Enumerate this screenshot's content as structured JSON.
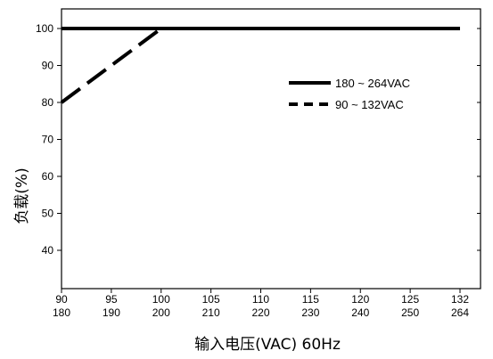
{
  "chart_data": {
    "type": "line",
    "title": "",
    "xlabel": "输入电压(VAC) 60Hz",
    "ylabel": "负载(%)",
    "x_ticks": [
      {
        "top": "90",
        "bottom": "180"
      },
      {
        "top": "95",
        "bottom": "190"
      },
      {
        "top": "100",
        "bottom": "200"
      },
      {
        "top": "105",
        "bottom": "210"
      },
      {
        "top": "110",
        "bottom": "220"
      },
      {
        "top": "115",
        "bottom": "230"
      },
      {
        "top": "120",
        "bottom": "240"
      },
      {
        "top": "125",
        "bottom": "250"
      },
      {
        "top": "132",
        "bottom": "264"
      }
    ],
    "y_ticks": [
      40,
      50,
      60,
      70,
      80,
      90,
      100
    ],
    "ylim": [
      30,
      105
    ],
    "grid": false,
    "legend_position": "right",
    "series": [
      {
        "name": "180 ~ 264VAC",
        "style": "solid",
        "x": [
          "180",
          "264"
        ],
        "y": [
          100,
          100
        ]
      },
      {
        "name": "90 ~ 132VAC",
        "style": "dashed",
        "x": [
          "90",
          "100",
          "132"
        ],
        "y": [
          80,
          100,
          100
        ]
      }
    ]
  }
}
